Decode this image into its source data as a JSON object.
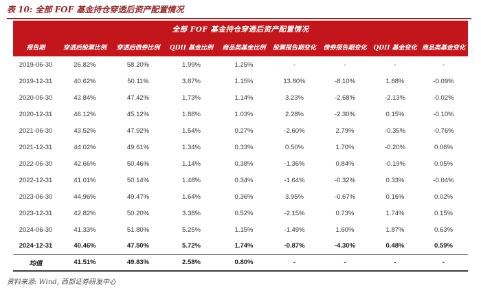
{
  "page": {
    "caption": "表 10: 全部 FOF 基金持仓穿透后资产配置情况",
    "source_note": "资料来源: Wind, 西部证券研发中心"
  },
  "colors": {
    "banner_red": "#c3161c",
    "caption_red": "#94282a",
    "rule_dark": "#3c3c3c",
    "body_text": "#333333"
  },
  "table": {
    "banner_title": "全部 FOF 基金持仓穿透后资产配置情况",
    "columns": [
      "报告期",
      "穿透后股票比例",
      "穿透后债券比例",
      "QDII 基金比例",
      "商品类基金比例",
      "股票报告期变化",
      "债券报告期变化",
      "QDII 基金变化",
      "商品类基金变化"
    ],
    "rows": [
      {
        "period": "2019-06-30",
        "values": [
          "26.82%",
          "58.20%",
          "1.99%",
          "1.25%",
          "-",
          "-",
          "-",
          "-"
        ],
        "bold": false
      },
      {
        "period": "2019-12-31",
        "values": [
          "40.62%",
          "50.11%",
          "3.87%",
          "1.15%",
          "13.80%",
          "-8.10%",
          "1.88%",
          "-0.09%"
        ],
        "bold": false
      },
      {
        "period": "2020-06-30",
        "values": [
          "43.84%",
          "47.42%",
          "1.73%",
          "1.14%",
          "3.23%",
          "-2.68%",
          "-2.13%",
          "-0.02%"
        ],
        "bold": false
      },
      {
        "period": "2020-12-31",
        "values": [
          "46.12%",
          "45.12%",
          "1.88%",
          "1.03%",
          "2.28%",
          "-2.30%",
          "0.15%",
          "-0.10%"
        ],
        "bold": false
      },
      {
        "period": "2021-06-30",
        "values": [
          "43.52%",
          "47.92%",
          "1.54%",
          "0.27%",
          "-2.60%",
          "2.79%",
          "-0.35%",
          "-0.76%"
        ],
        "bold": false
      },
      {
        "period": "2021-12-31",
        "values": [
          "44.02%",
          "49.61%",
          "1.34%",
          "0.33%",
          "0.50%",
          "1.70%",
          "-0.20%",
          "0.06%"
        ],
        "bold": false
      },
      {
        "period": "2022-06-30",
        "values": [
          "42.66%",
          "50.46%",
          "1.14%",
          "0.38%",
          "-1.36%",
          "0.84%",
          "-0.19%",
          "0.05%"
        ],
        "bold": false
      },
      {
        "period": "2022-12-31",
        "values": [
          "41.01%",
          "50.14%",
          "1.48%",
          "0.34%",
          "-1.64%",
          "-0.32%",
          "0.33%",
          "-0.04%"
        ],
        "bold": false
      },
      {
        "period": "2023-06-30",
        "values": [
          "44.96%",
          "49.47%",
          "1.64%",
          "0.36%",
          "3.95%",
          "-0.67%",
          "0.16%",
          "0.02%"
        ],
        "bold": false
      },
      {
        "period": "2023-12-31",
        "values": [
          "42.82%",
          "50.20%",
          "3.38%",
          "0.52%",
          "-2.15%",
          "0.73%",
          "1.74%",
          "0.15%"
        ],
        "bold": false
      },
      {
        "period": "2024-06-30",
        "values": [
          "41.33%",
          "51.80%",
          "5.25%",
          "1.15%",
          "-1.49%",
          "1.60%",
          "1.87%",
          "0.63%"
        ],
        "bold": false
      },
      {
        "period": "2024-12-31",
        "values": [
          "40.46%",
          "47.50%",
          "5.72%",
          "1.74%",
          "-0.87%",
          "-4.30%",
          "0.48%",
          "0.59%"
        ],
        "bold": true
      }
    ],
    "average_row": {
      "period": "均值",
      "values": [
        "41.51%",
        "49.83%",
        "2.58%",
        "0.80%",
        "-",
        "-",
        "-",
        "-"
      ],
      "bold": true
    }
  }
}
